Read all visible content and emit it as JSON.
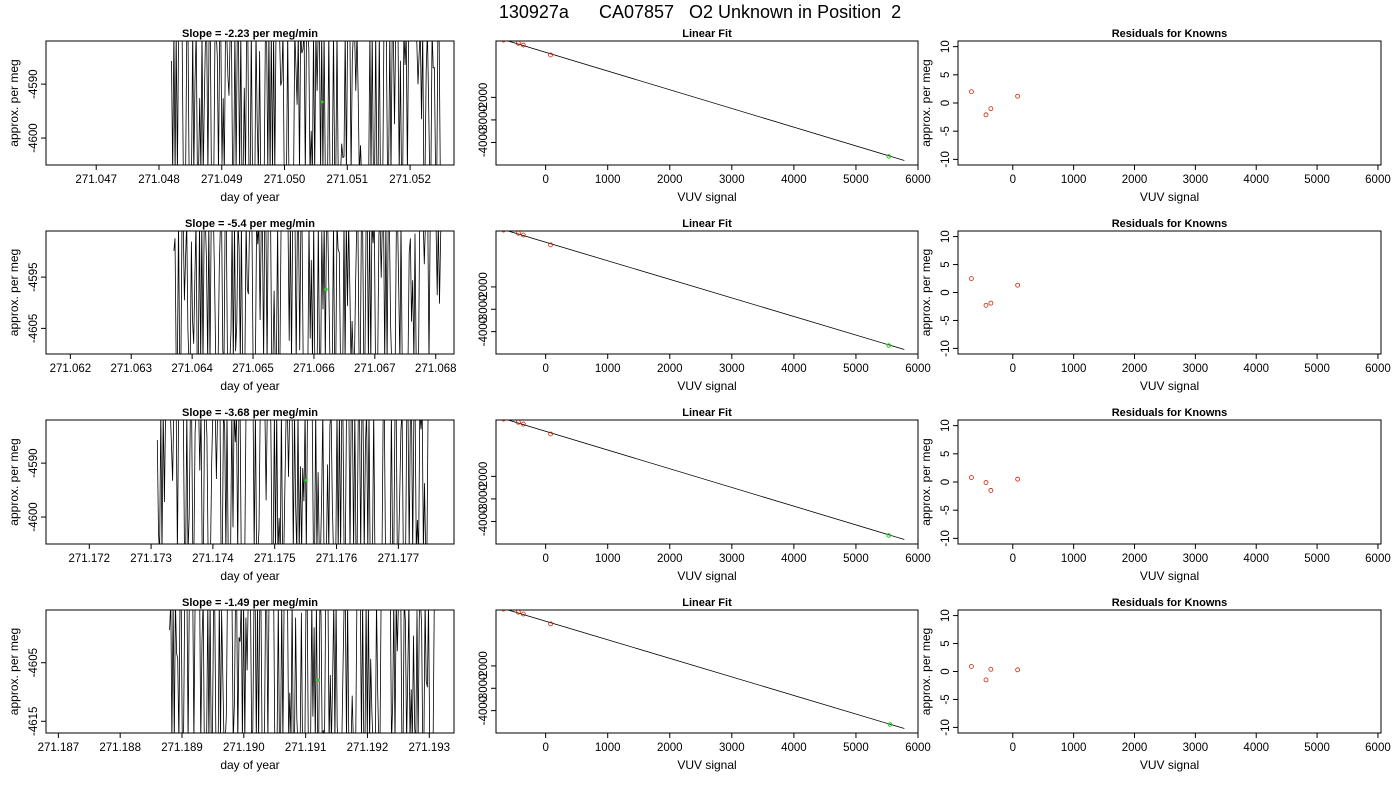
{
  "page_title": "130927a      CA07857   O2 Unknown in Position  2",
  "colors": {
    "line": "#000000",
    "known_point": "#cc2200",
    "unknown_point": "#22cc22"
  },
  "chart_data": [
    {
      "type": "line",
      "row": 1,
      "panel": "time-series",
      "title": "Slope =  -2.23  per meg/min",
      "xlabel": "day of year",
      "ylabel": "approx. per meg",
      "xlim": [
        271.0462,
        271.0527
      ],
      "ylim": [
        -4605,
        -4582
      ],
      "xticks": [
        "271.047",
        "271.048",
        "271.049",
        "271.050",
        "271.051",
        "271.052"
      ],
      "yticks": [
        "-4590",
        "-4600"
      ],
      "data_start": 271.0482,
      "data_end": 271.0525,
      "unknown_point": {
        "x": 271.0506,
        "y": -4593.3
      }
    },
    {
      "type": "scatter",
      "row": 1,
      "panel": "linear-fit",
      "title": "Linear Fit",
      "xlabel": "VUV signal",
      "ylabel": "",
      "xlim": [
        -800,
        6000
      ],
      "ylim": [
        -5000,
        500
      ],
      "xticks": [
        "0",
        "1000",
        "2000",
        "3000",
        "4000",
        "5000",
        "6000"
      ],
      "yticks": [
        "-2000",
        "-3000",
        "-4000"
      ],
      "knowns": [
        {
          "x": -680,
          "y": 540
        },
        {
          "x": -440,
          "y": 400
        },
        {
          "x": -360,
          "y": 320
        },
        {
          "x": 80,
          "y": -120
        }
      ],
      "unknown": {
        "x": 5530,
        "y": -4620
      },
      "fit_line": {
        "x1": -700,
        "y1": 580,
        "x2": 5780,
        "y2": -4800
      }
    },
    {
      "type": "scatter",
      "row": 1,
      "panel": "residuals",
      "title": "Residuals for Knowns",
      "xlabel": "VUV signal",
      "ylabel": "approx. per meg",
      "xlim": [
        -900,
        6050
      ],
      "ylim": [
        -11,
        11
      ],
      "xticks": [
        "0",
        "1000",
        "2000",
        "3000",
        "4000",
        "5000",
        "6000"
      ],
      "yticks": [
        "10",
        "5",
        "0",
        "-5",
        "-10"
      ],
      "residuals": [
        {
          "x": -680,
          "y": 2.0
        },
        {
          "x": -440,
          "y": -2.1
        },
        {
          "x": -360,
          "y": -1.0
        },
        {
          "x": 80,
          "y": 1.2
        }
      ]
    },
    {
      "type": "line",
      "row": 2,
      "panel": "time-series",
      "title": "Slope =  -5.4  per meg/min",
      "xlabel": "day of year",
      "ylabel": "approx. per meg",
      "xlim": [
        271.0616,
        271.0683
      ],
      "ylim": [
        -4610,
        -4586
      ],
      "xticks": [
        "271.062",
        "271.063",
        "271.064",
        "271.065",
        "271.066",
        "271.067",
        "271.068"
      ],
      "yticks": [
        "-4595",
        "-4605"
      ],
      "data_start": 271.0637,
      "data_end": 271.0681,
      "unknown_point": {
        "x": 271.0662,
        "y": -4597.4
      }
    },
    {
      "type": "scatter",
      "row": 2,
      "panel": "linear-fit",
      "title": "Linear Fit",
      "xlabel": "VUV signal",
      "ylabel": "",
      "xlim": [
        -800,
        6000
      ],
      "ylim": [
        -5000,
        500
      ],
      "xticks": [
        "0",
        "1000",
        "2000",
        "3000",
        "4000",
        "5000",
        "6000"
      ],
      "yticks": [
        "-2000",
        "-3000",
        "-4000"
      ],
      "knowns": [
        {
          "x": -680,
          "y": 540
        },
        {
          "x": -440,
          "y": 400
        },
        {
          "x": -360,
          "y": 320
        },
        {
          "x": 80,
          "y": -120
        }
      ],
      "unknown": {
        "x": 5530,
        "y": -4620
      },
      "fit_line": {
        "x1": -700,
        "y1": 580,
        "x2": 5780,
        "y2": -4800
      }
    },
    {
      "type": "scatter",
      "row": 2,
      "panel": "residuals",
      "title": "Residuals for Knowns",
      "xlabel": "VUV signal",
      "ylabel": "approx. per meg",
      "xlim": [
        -900,
        6050
      ],
      "ylim": [
        -11,
        11
      ],
      "xticks": [
        "0",
        "1000",
        "2000",
        "3000",
        "4000",
        "5000",
        "6000"
      ],
      "yticks": [
        "10",
        "5",
        "0",
        "-5",
        "-10"
      ],
      "residuals": [
        {
          "x": -680,
          "y": 2.5
        },
        {
          "x": -440,
          "y": -2.3
        },
        {
          "x": -360,
          "y": -1.9
        },
        {
          "x": 80,
          "y": 1.3
        }
      ]
    },
    {
      "type": "line",
      "row": 3,
      "panel": "time-series",
      "title": "Slope =  -3.68  per meg/min",
      "xlabel": "day of year",
      "ylabel": "approx. per meg",
      "xlim": [
        271.1713,
        271.1779
      ],
      "ylim": [
        -4605,
        -4582
      ],
      "xticks": [
        "271.172",
        "271.173",
        "271.174",
        "271.175",
        "271.176",
        "271.177"
      ],
      "yticks": [
        "-4590",
        "-4600"
      ],
      "data_start": 271.1731,
      "data_end": 271.1775,
      "unknown_point": {
        "x": 271.1755,
        "y": -4593.2
      }
    },
    {
      "type": "scatter",
      "row": 3,
      "panel": "linear-fit",
      "title": "Linear Fit",
      "xlabel": "VUV signal",
      "ylabel": "",
      "xlim": [
        -800,
        6000
      ],
      "ylim": [
        -5000,
        500
      ],
      "xticks": [
        "0",
        "1000",
        "2000",
        "3000",
        "4000",
        "5000",
        "6000"
      ],
      "yticks": [
        "-2000",
        "-3000",
        "-4000"
      ],
      "knowns": [
        {
          "x": -680,
          "y": 540
        },
        {
          "x": -440,
          "y": 400
        },
        {
          "x": -360,
          "y": 320
        },
        {
          "x": 80,
          "y": -120
        }
      ],
      "unknown": {
        "x": 5530,
        "y": -4620
      },
      "fit_line": {
        "x1": -700,
        "y1": 580,
        "x2": 5780,
        "y2": -4800
      }
    },
    {
      "type": "scatter",
      "row": 3,
      "panel": "residuals",
      "title": "Residuals for Knowns",
      "xlabel": "VUV signal",
      "ylabel": "approx. per meg",
      "xlim": [
        -900,
        6050
      ],
      "ylim": [
        -11,
        11
      ],
      "xticks": [
        "0",
        "1000",
        "2000",
        "3000",
        "4000",
        "5000",
        "6000"
      ],
      "yticks": [
        "10",
        "5",
        "0",
        "-5",
        "-10"
      ],
      "residuals": [
        {
          "x": -680,
          "y": 0.8
        },
        {
          "x": -440,
          "y": -0.1
        },
        {
          "x": -360,
          "y": -1.5
        },
        {
          "x": 80,
          "y": 0.5
        }
      ]
    },
    {
      "type": "line",
      "row": 4,
      "panel": "time-series",
      "title": "Slope =  -1.49  per meg/min",
      "xlabel": "day of year",
      "ylabel": "approx. per meg",
      "xlim": [
        271.1868,
        271.1934
      ],
      "ylim": [
        -4617,
        -4596
      ],
      "xticks": [
        "271.187",
        "271.188",
        "271.189",
        "271.190",
        "271.191",
        "271.192",
        "271.193"
      ],
      "yticks": [
        "-4605",
        "-4615"
      ],
      "data_start": 271.1888,
      "data_end": 271.1931,
      "unknown_point": {
        "x": 271.1912,
        "y": -4608.0
      }
    },
    {
      "type": "scatter",
      "row": 4,
      "panel": "linear-fit",
      "title": "Linear Fit",
      "xlabel": "VUV signal",
      "ylabel": "",
      "xlim": [
        -800,
        6000
      ],
      "ylim": [
        -5000,
        500
      ],
      "xticks": [
        "0",
        "1000",
        "2000",
        "3000",
        "4000",
        "5000",
        "6000"
      ],
      "yticks": [
        "-2000",
        "-3000",
        "-4000"
      ],
      "knowns": [
        {
          "x": -680,
          "y": 540
        },
        {
          "x": -440,
          "y": 400
        },
        {
          "x": -360,
          "y": 320
        },
        {
          "x": 80,
          "y": -120
        }
      ],
      "unknown": {
        "x": 5550,
        "y": -4620
      },
      "fit_line": {
        "x1": -700,
        "y1": 580,
        "x2": 5780,
        "y2": -4800
      }
    },
    {
      "type": "scatter",
      "row": 4,
      "panel": "residuals",
      "title": "Residuals for Knowns",
      "xlabel": "VUV signal",
      "ylabel": "approx. per meg",
      "xlim": [
        -900,
        6050
      ],
      "ylim": [
        -11,
        11
      ],
      "xticks": [
        "0",
        "1000",
        "2000",
        "3000",
        "4000",
        "5000",
        "6000"
      ],
      "yticks": [
        "10",
        "5",
        "0",
        "-5",
        "-10"
      ],
      "residuals": [
        {
          "x": -680,
          "y": 0.9
        },
        {
          "x": -440,
          "y": -1.5
        },
        {
          "x": -360,
          "y": 0.4
        },
        {
          "x": 80,
          "y": 0.3
        }
      ]
    }
  ]
}
